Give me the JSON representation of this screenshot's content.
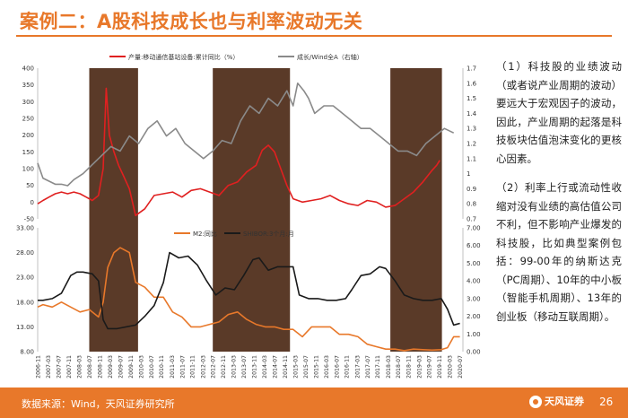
{
  "page": {
    "title": "案例二：A股科技成长也与利率波动无关",
    "source": "数据来源：Wind，天风证券研究所",
    "logo_text": "天风证券",
    "page_number": "26",
    "accent_color": "#e8782a"
  },
  "side_text": [
    "（1）科技股的业绩波动（或者说产业周期的波动）要远大于宏观因子的波动，因此，产业周期的起落是科技板块估值泡沫变化的更核心因素。",
    "（2）利率上行或流动性收缩对没有业绩的高估值公司不利，但不影响产业爆发的科技股，比如典型案例包括：99-00年的纳斯达克（PC周期）、10年的中小板（智能手机周期）、13年的创业板（移动互联周期）。"
  ],
  "chart_data": [
    {
      "type": "line",
      "series": [
        {
          "name": "产量:移动通信基站设备:累计同比（%）",
          "color": "#e02020",
          "axis": "left",
          "x": [
            2006.83,
            2007.0,
            2007.2,
            2007.4,
            2007.6,
            2007.8,
            2008.0,
            2008.2,
            2008.4,
            2008.6,
            2008.8,
            2008.95,
            2009.05,
            2009.15,
            2009.3,
            2009.45,
            2009.6,
            2009.8,
            2010.0,
            2010.3,
            2010.6,
            2010.9,
            2011.2,
            2011.5,
            2011.8,
            2012.1,
            2012.4,
            2012.7,
            2013.0,
            2013.3,
            2013.6,
            2013.9,
            2014.1,
            2014.3,
            2014.5,
            2014.7,
            2014.9,
            2015.1,
            2015.4,
            2015.7,
            2016.0,
            2016.3,
            2016.6,
            2016.9,
            2017.2,
            2017.5,
            2017.8,
            2018.1,
            2018.4,
            2018.7,
            2019.0,
            2019.3,
            2019.6,
            2019.75,
            2019.85
          ],
          "y": [
            -5,
            5,
            15,
            25,
            30,
            25,
            30,
            25,
            15,
            5,
            20,
            100,
            340,
            200,
            150,
            110,
            80,
            40,
            -40,
            -20,
            20,
            25,
            30,
            15,
            35,
            40,
            30,
            20,
            50,
            60,
            90,
            110,
            155,
            170,
            150,
            100,
            50,
            10,
            0,
            5,
            10,
            20,
            5,
            -5,
            -10,
            5,
            0,
            -15,
            -10,
            10,
            30,
            60,
            95,
            110,
            125
          ]
        },
        {
          "name": "成长/Wind全A（右轴）",
          "color": "#8a8a8a",
          "axis": "right",
          "x": [
            2006.83,
            2007.0,
            2007.2,
            2007.4,
            2007.6,
            2007.8,
            2008.0,
            2008.3,
            2008.6,
            2008.9,
            2009.2,
            2009.5,
            2009.8,
            2010.1,
            2010.4,
            2010.7,
            2011.0,
            2011.3,
            2011.6,
            2011.9,
            2012.2,
            2012.5,
            2012.8,
            2013.1,
            2013.4,
            2013.7,
            2014.0,
            2014.3,
            2014.6,
            2014.9,
            2015.1,
            2015.25,
            2015.45,
            2015.6,
            2015.8,
            2016.1,
            2016.4,
            2016.7,
            2017.0,
            2017.3,
            2017.6,
            2017.9,
            2018.2,
            2018.5,
            2018.8,
            2019.1,
            2019.4,
            2019.7,
            2020.0,
            2020.3
          ],
          "y": [
            1.07,
            0.97,
            0.95,
            0.93,
            0.93,
            0.92,
            0.96,
            1.0,
            1.06,
            1.12,
            1.18,
            1.15,
            1.25,
            1.2,
            1.3,
            1.35,
            1.25,
            1.3,
            1.2,
            1.15,
            1.1,
            1.15,
            1.22,
            1.2,
            1.35,
            1.45,
            1.4,
            1.5,
            1.45,
            1.55,
            1.45,
            1.6,
            1.55,
            1.5,
            1.4,
            1.45,
            1.45,
            1.4,
            1.35,
            1.3,
            1.3,
            1.25,
            1.2,
            1.15,
            1.15,
            1.12,
            1.2,
            1.25,
            1.3,
            1.27
          ]
        }
      ],
      "ylim_left": [
        -50,
        400
      ],
      "yticks_left": [
        "400",
        "350",
        "300",
        "250",
        "200",
        "150",
        "100",
        "50",
        "0",
        "-50"
      ],
      "ylim_right": [
        0.7,
        1.7
      ],
      "yticks_right": [
        "1.7",
        "1.6",
        "1.5",
        "1.4",
        "1.3",
        "1.2",
        "1.1",
        "1",
        "0.9",
        "0.8",
        "0.7"
      ],
      "grid": false,
      "legend": "top"
    },
    {
      "type": "line",
      "series": [
        {
          "name": "M2:同比",
          "color": "#e8782a",
          "axis": "left",
          "x": [
            2006.83,
            2007.0,
            2007.3,
            2007.6,
            2007.9,
            2008.2,
            2008.5,
            2008.8,
            2008.95,
            2009.1,
            2009.3,
            2009.5,
            2009.8,
            2010.0,
            2010.3,
            2010.6,
            2010.9,
            2011.2,
            2011.5,
            2011.8,
            2012.1,
            2012.4,
            2012.7,
            2013.0,
            2013.3,
            2013.6,
            2013.9,
            2014.2,
            2014.5,
            2014.8,
            2015.1,
            2015.4,
            2015.7,
            2016.0,
            2016.3,
            2016.6,
            2016.9,
            2017.2,
            2017.5,
            2017.8,
            2018.1,
            2018.4,
            2018.7,
            2019.0,
            2019.3,
            2019.6,
            2019.9,
            2020.1,
            2020.3,
            2020.5
          ],
          "y": [
            17,
            17.5,
            17,
            18,
            17,
            16,
            16.5,
            15,
            18,
            25,
            28,
            29,
            28,
            22,
            21,
            19,
            19,
            16,
            15,
            13,
            13,
            13.5,
            14,
            15.5,
            16,
            14.5,
            13.5,
            13,
            13,
            12.5,
            12.5,
            11,
            13,
            13,
            13,
            11.5,
            11.5,
            11,
            9.5,
            9,
            8.5,
            8.5,
            8.2,
            8.5,
            8.4,
            8.3,
            8.4,
            8.8,
            11,
            11
          ]
        },
        {
          "name": "SHIBOR:3个月:月",
          "color": "#1a1a1a",
          "axis": "right",
          "x": [
            2006.83,
            2007.0,
            2007.3,
            2007.6,
            2007.9,
            2008.1,
            2008.3,
            2008.6,
            2008.8,
            2008.95,
            2009.1,
            2009.4,
            2009.7,
            2010.0,
            2010.3,
            2010.6,
            2010.9,
            2011.1,
            2011.4,
            2011.7,
            2012.0,
            2012.3,
            2012.6,
            2012.9,
            2013.2,
            2013.5,
            2013.8,
            2014.0,
            2014.3,
            2014.6,
            2014.9,
            2015.1,
            2015.3,
            2015.6,
            2015.9,
            2016.2,
            2016.5,
            2016.8,
            2017.0,
            2017.3,
            2017.6,
            2017.9,
            2018.1,
            2018.4,
            2018.7,
            2019.0,
            2019.3,
            2019.6,
            2019.9,
            2020.1,
            2020.3,
            2020.5
          ],
          "y": [
            2.9,
            2.9,
            3.0,
            3.3,
            4.3,
            4.5,
            4.5,
            4.4,
            4.0,
            1.8,
            1.3,
            1.3,
            1.4,
            1.5,
            2.0,
            2.6,
            3.9,
            5.6,
            5.3,
            5.4,
            4.9,
            4.0,
            3.2,
            3.6,
            3.5,
            4.3,
            5.2,
            5.3,
            4.6,
            4.8,
            4.8,
            4.8,
            3.2,
            3.0,
            3.0,
            2.9,
            2.9,
            3.0,
            3.5,
            4.3,
            4.4,
            4.8,
            4.7,
            4.0,
            3.2,
            3.0,
            2.9,
            2.9,
            3.0,
            2.4,
            1.5,
            1.6
          ]
        }
      ],
      "ylim_left": [
        8,
        33
      ],
      "yticks_left": [
        "33.00",
        "28.00",
        "23.00",
        "18.00",
        "13.00",
        "8.00"
      ],
      "ylim_right": [
        0,
        7
      ],
      "yticks_right": [
        "7.00",
        "6.00",
        "5.00",
        "4.00",
        "3.00",
        "2.00",
        "1.00",
        "0.00"
      ],
      "grid": false,
      "legend": "top"
    }
  ],
  "shaded_periods": [
    {
      "start": 2008.5,
      "end": 2010.08
    },
    {
      "start": 2012.5,
      "end": 2015.0
    },
    {
      "start": 2018.25,
      "end": 2019.92
    }
  ],
  "x_tick_labels": [
    "2006-11",
    "2007-03",
    "2007-07",
    "2007-11",
    "2008-03",
    "2008-07",
    "2008-11",
    "2009-03",
    "2009-07",
    "2009-11",
    "2010-03",
    "2010-07",
    "2010-11",
    "2011-03",
    "2011-07",
    "2011-11",
    "2012-03",
    "2012-07",
    "2012-11",
    "2013-03",
    "2013-07",
    "2013-11",
    "2014-03",
    "2014-07",
    "2014-11",
    "2015-03",
    "2015-07",
    "2015-11",
    "2016-03",
    "2016-07",
    "2016-11",
    "2017-03",
    "2017-07",
    "2017-11",
    "2018-03",
    "2018-07",
    "2018-11",
    "2019-03",
    "2019-07",
    "2019-11",
    "2020-03",
    "2020-07"
  ],
  "x_tick_values": [
    2006.83,
    2007.17,
    2007.5,
    2007.83,
    2008.17,
    2008.5,
    2008.83,
    2009.17,
    2009.5,
    2009.83,
    2010.17,
    2010.5,
    2010.83,
    2011.17,
    2011.5,
    2011.83,
    2012.17,
    2012.5,
    2012.83,
    2013.17,
    2013.5,
    2013.83,
    2014.17,
    2014.5,
    2014.83,
    2015.17,
    2015.5,
    2015.83,
    2016.17,
    2016.5,
    2016.83,
    2017.17,
    2017.5,
    2017.83,
    2018.17,
    2018.5,
    2018.83,
    2019.17,
    2019.5,
    2019.83,
    2020.17,
    2020.5
  ],
  "x_range": [
    2006.83,
    2020.6
  ],
  "shade_color": "#5a3a28"
}
